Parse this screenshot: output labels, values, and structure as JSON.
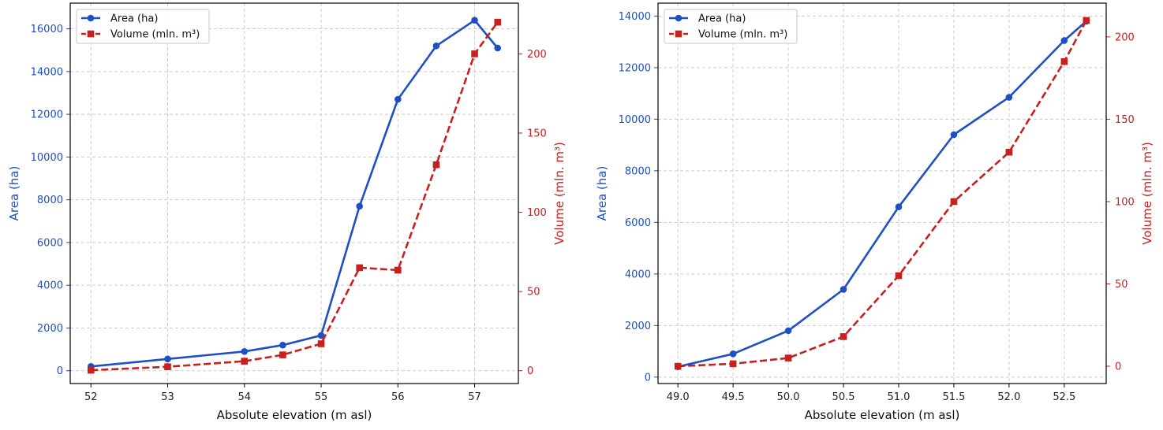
{
  "colors": {
    "area": "#1f4fc4",
    "volume": "#c8201f",
    "grid": "#cccccc",
    "frame": "#000000"
  },
  "chart_data": [
    {
      "type": "line",
      "xlabel": "Absolute elevation (m asl)",
      "ylabel_left": "Area (ha)",
      "ylabel_right": "Volume (mln. m³)",
      "xlim": [
        51.73,
        57.57
      ],
      "ylim_left": [
        -600,
        17200
      ],
      "ylim_right": [
        -8.1,
        232
      ],
      "xticks": [
        "52",
        "53",
        "54",
        "55",
        "56",
        "57"
      ],
      "yticks_left": [
        "0",
        "2000",
        "4000",
        "6000",
        "8000",
        "10000",
        "12000",
        "14000",
        "16000"
      ],
      "yticks_right": [
        "0",
        "50",
        "100",
        "150",
        "200"
      ],
      "grid": true,
      "legend_position": "top-left",
      "series": [
        {
          "name": "Area (ha)",
          "axis": "left",
          "style": "solid-circle",
          "x": [
            52,
            53,
            54,
            54.5,
            55,
            55.5,
            56,
            56.5,
            57,
            57.3
          ],
          "values": [
            200,
            550,
            900,
            1200,
            1650,
            7700,
            12700,
            15200,
            16400,
            15100
          ]
        },
        {
          "name": "Volume (mln. m³)",
          "axis": "right",
          "style": "dashed-square",
          "x": [
            52,
            53,
            54,
            54.5,
            55,
            55.5,
            56,
            56.5,
            57,
            57.3
          ],
          "values": [
            0.3,
            2.5,
            6,
            10,
            17,
            65,
            63.5,
            130,
            200,
            220
          ]
        }
      ]
    },
    {
      "type": "line",
      "xlabel": "Absolute elevation (m asl)",
      "ylabel_left": "Area (ha)",
      "ylabel_right": "Volume (mln. m³)",
      "xlim": [
        48.82,
        52.88
      ],
      "ylim_left": [
        -250,
        14500
      ],
      "ylim_right": [
        -10.5,
        220.5
      ],
      "xticks": [
        "49.0",
        "49.5",
        "50.0",
        "50.5",
        "51.0",
        "51.5",
        "52.0",
        "52.5"
      ],
      "yticks_left": [
        "0",
        "2000",
        "4000",
        "6000",
        "8000",
        "10000",
        "12000",
        "14000"
      ],
      "yticks_right": [
        "0",
        "50",
        "100",
        "150",
        "200"
      ],
      "grid": true,
      "legend_position": "top-left",
      "series": [
        {
          "name": "Area (ha)",
          "axis": "left",
          "style": "solid-circle",
          "x": [
            49.0,
            49.5,
            50.0,
            50.5,
            51.0,
            51.5,
            52.0,
            52.5,
            52.7
          ],
          "values": [
            400,
            900,
            1800,
            3400,
            6600,
            9400,
            10850,
            13050,
            13800
          ]
        },
        {
          "name": "Volume (mln. m³)",
          "axis": "right",
          "style": "dashed-square",
          "x": [
            49.0,
            49.5,
            50.0,
            50.5,
            51.0,
            51.5,
            52.0,
            52.5,
            52.7
          ],
          "values": [
            0,
            1.5,
            5,
            18,
            55,
            100,
            130,
            185,
            210
          ]
        }
      ]
    }
  ]
}
